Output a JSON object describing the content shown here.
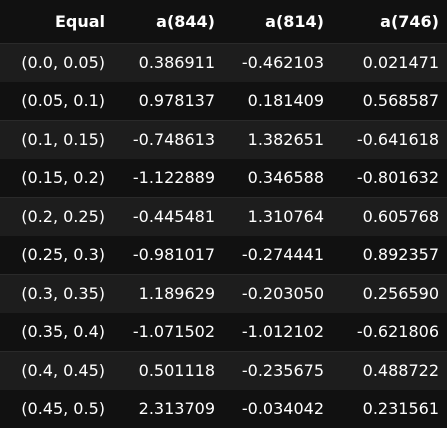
{
  "table": {
    "columns": [
      "Equal",
      "a(844)",
      "a(814)",
      "a(746)"
    ],
    "rows": [
      [
        "(0.0, 0.05)",
        "0.386911",
        "-0.462103",
        "0.021471"
      ],
      [
        "(0.05, 0.1)",
        "0.978137",
        "0.181409",
        "0.568587"
      ],
      [
        "(0.1, 0.15)",
        "-0.748613",
        "1.382651",
        "-0.641618"
      ],
      [
        "(0.15, 0.2)",
        "-1.122889",
        "0.346588",
        "-0.801632"
      ],
      [
        "(0.2, 0.25)",
        "-0.445481",
        "1.310764",
        "0.605768"
      ],
      [
        "(0.25, 0.3)",
        "-0.981017",
        "-0.274441",
        "0.892357"
      ],
      [
        "(0.3, 0.35)",
        "1.189629",
        "-0.203050",
        "0.256590"
      ],
      [
        "(0.35, 0.4)",
        "-1.071502",
        "-1.012102",
        "-0.621806"
      ],
      [
        "(0.4, 0.45)",
        "0.501118",
        "-0.235675",
        "0.488722"
      ],
      [
        "(0.45, 0.5)",
        "2.313709",
        "-0.034042",
        "0.231561"
      ]
    ]
  },
  "colors": {
    "background": "#111111",
    "stripe": "#1d1d1d",
    "text": "#ffffff"
  }
}
